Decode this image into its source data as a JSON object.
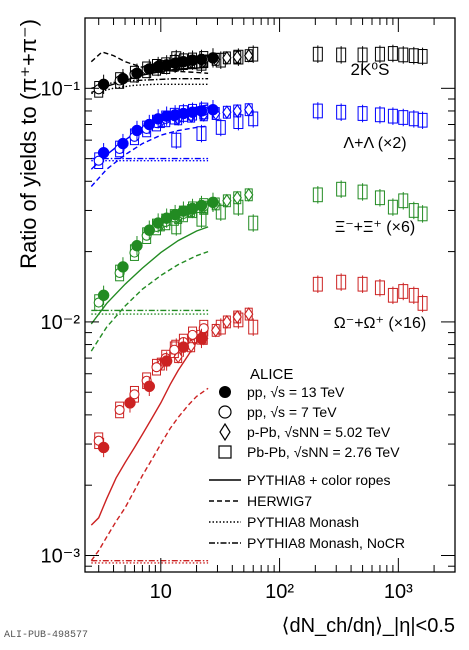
{
  "figure_id": "ALI-PUB-498577",
  "chart_data": {
    "type": "scatter",
    "title": "",
    "xlabel": "⟨dN_ch/dη⟩_|η|<0.5",
    "ylabel": "Ratio of yields to (π⁺+π⁻)",
    "xscale": "log",
    "yscale": "log",
    "xlim": [
      2.3,
      3000
    ],
    "ylim": [
      0.00085,
      0.2
    ],
    "x_ticks": [
      "10",
      "10²",
      "10³"
    ],
    "y_ticks": [
      "10⁻³",
      "10⁻²",
      "10⁻¹"
    ],
    "grid": false,
    "legend_position": "center-right",
    "legend": {
      "title": "ALICE",
      "markers": [
        {
          "key": "pp13",
          "symbol": "filled-circle",
          "label": "pp, √s = 13 TeV"
        },
        {
          "key": "pp7",
          "symbol": "open-circle",
          "label": "pp, √s = 7 TeV"
        },
        {
          "key": "ppb",
          "symbol": "open-diamond",
          "label": "p-Pb, √sNN = 5.02 TeV"
        },
        {
          "key": "pbpb",
          "symbol": "open-square",
          "label": "Pb-Pb, √sNN = 2.76 TeV"
        }
      ],
      "lines": [
        {
          "key": "ropes",
          "dash": "solid",
          "label": "PYTHIA8 + color ropes"
        },
        {
          "key": "herwig",
          "dash": "dashed",
          "label": "HERWIG7"
        },
        {
          "key": "monash",
          "dash": "dotted",
          "label": "PYTHIA8 Monash"
        },
        {
          "key": "nocr",
          "dash": "dashdot",
          "label": "PYTHIA8 Monash, NoCR"
        }
      ]
    },
    "species": [
      {
        "name": "K0S",
        "label": "2K⁰S",
        "color": "#000000",
        "pp13": {
          "x": [
            3.3,
            4.8,
            6.3,
            8.0,
            9.5,
            11.2,
            13.2,
            15.5,
            18.5,
            22.0,
            27.5
          ],
          "y": [
            0.104,
            0.11,
            0.116,
            0.121,
            0.124,
            0.126,
            0.128,
            0.13,
            0.132,
            0.133,
            0.135
          ]
        },
        "pp7": {
          "x": [
            3.0,
            4.5,
            6.0,
            7.6,
            9.2,
            11.0,
            13.0,
            15.5,
            18.5,
            23.0
          ],
          "y": [
            0.099,
            0.108,
            0.115,
            0.12,
            0.123,
            0.125,
            0.128,
            0.13,
            0.131,
            0.133
          ]
        },
        "ppb": {
          "x": [
            10,
            14,
            18,
            23,
            29,
            36,
            44,
            55
          ],
          "y": [
            0.124,
            0.127,
            0.13,
            0.131,
            0.133,
            0.135,
            0.136,
            0.138
          ]
        },
        "pbpb": {
          "x": [
            13.5,
            22,
            32,
            45,
            60,
            210,
            330,
            500,
            700,
            900,
            1100,
            1350,
            1600
          ],
          "y": [
            0.134,
            0.128,
            0.132,
            0.136,
            0.14,
            0.14,
            0.139,
            0.139,
            0.14,
            0.141,
            0.139,
            0.138,
            0.137
          ]
        },
        "ropes": {
          "x": [
            2.6,
            3.5,
            5,
            7,
            10,
            14,
            20,
            25
          ],
          "y": [
            0.096,
            0.102,
            0.108,
            0.114,
            0.118,
            0.121,
            0.122,
            0.123
          ]
        },
        "herwig": {
          "x": [
            2.6,
            3.2,
            4,
            5,
            7,
            10,
            14,
            20,
            25
          ],
          "y": [
            0.13,
            0.143,
            0.138,
            0.13,
            0.123,
            0.12,
            0.118,
            0.117,
            0.116
          ]
        },
        "monash": {
          "x": [
            2.6,
            4,
            6,
            9,
            13,
            19,
            25
          ],
          "y": [
            0.095,
            0.1,
            0.103,
            0.104,
            0.104,
            0.104,
            0.104
          ]
        },
        "nocr": {
          "x": [
            2.6,
            4,
            6,
            9,
            13,
            19,
            25
          ],
          "y": [
            0.1,
            0.106,
            0.108,
            0.109,
            0.11,
            0.11,
            0.11
          ]
        }
      },
      {
        "name": "Lambda",
        "label": "Λ+Λ (×2)",
        "color": "#0000ff",
        "pp13": {
          "x": [
            3.3,
            4.8,
            6.3,
            8.0,
            9.5,
            11.2,
            13.2,
            15.5,
            18.5,
            22.0,
            27.5
          ],
          "y": [
            0.053,
            0.058,
            0.066,
            0.07,
            0.074,
            0.076,
            0.077,
            0.078,
            0.079,
            0.08,
            0.081
          ]
        },
        "pp7": {
          "x": [
            3.0,
            4.5,
            6.0,
            7.6,
            9.2,
            11.0,
            13.0,
            15.5,
            18.5,
            23.0
          ],
          "y": [
            0.049,
            0.055,
            0.062,
            0.067,
            0.071,
            0.074,
            0.076,
            0.078,
            0.079,
            0.08
          ]
        },
        "ppb": {
          "x": [
            10,
            14,
            18,
            23,
            29,
            36,
            44,
            55
          ],
          "y": [
            0.072,
            0.074,
            0.076,
            0.077,
            0.078,
            0.079,
            0.08,
            0.081
          ]
        },
        "pbpb": {
          "x": [
            13.5,
            22,
            32,
            45,
            60,
            210,
            330,
            500,
            700,
            900,
            1100,
            1350,
            1600
          ],
          "y": [
            0.06,
            0.064,
            0.068,
            0.072,
            0.074,
            0.08,
            0.079,
            0.078,
            0.077,
            0.076,
            0.075,
            0.074,
            0.073
          ]
        },
        "ropes": {
          "x": [
            2.6,
            3.5,
            5,
            7,
            10,
            14,
            20,
            25
          ],
          "y": [
            0.045,
            0.052,
            0.06,
            0.068,
            0.074,
            0.079,
            0.083,
            0.085
          ]
        },
        "herwig": {
          "x": [
            2.6,
            3.5,
            5,
            7,
            10,
            14,
            20,
            25
          ],
          "y": [
            0.038,
            0.045,
            0.052,
            0.058,
            0.063,
            0.066,
            0.068,
            0.069
          ]
        },
        "monash": {
          "x": [
            2.6,
            4,
            6,
            9,
            13,
            19,
            25
          ],
          "y": [
            0.049,
            0.049,
            0.049,
            0.049,
            0.049,
            0.049,
            0.049
          ]
        },
        "nocr": {
          "x": [
            2.6,
            4,
            6,
            9,
            13,
            19,
            25
          ],
          "y": [
            0.05,
            0.05,
            0.05,
            0.05,
            0.05,
            0.05,
            0.05
          ]
        }
      },
      {
        "name": "Xi",
        "label": "Ξ⁻+Ξ⁺ (×6)",
        "color": "#228b22",
        "pp13": {
          "x": [
            3.3,
            4.8,
            6.3,
            8.0,
            9.5,
            11.2,
            13.2,
            15.5,
            18.5,
            22.0,
            27.5
          ],
          "y": [
            0.013,
            0.0172,
            0.0212,
            0.0247,
            0.0265,
            0.0278,
            0.0288,
            0.0298,
            0.0306,
            0.0315,
            0.0325
          ]
        },
        "pp7": {
          "x": [
            3.0,
            4.5,
            6.0,
            7.6,
            9.2,
            11.0,
            13.0,
            15.5,
            18.5,
            23.0
          ],
          "y": [
            0.0121,
            0.0162,
            0.0198,
            0.0234,
            0.0255,
            0.0268,
            0.028,
            0.029,
            0.0302,
            0.0312
          ]
        },
        "ppb": {
          "x": [
            10,
            14,
            18,
            23,
            29,
            36,
            44,
            55
          ],
          "y": [
            0.026,
            0.028,
            0.03,
            0.031,
            0.032,
            0.033,
            0.034,
            0.035
          ]
        },
        "pbpb": {
          "x": [
            13.5,
            22,
            32,
            45,
            60,
            210,
            330,
            500,
            700,
            900,
            1100,
            1350,
            1600
          ],
          "y": [
            0.0255,
            0.0275,
            0.0295,
            0.031,
            0.0265,
            0.035,
            0.037,
            0.036,
            0.034,
            0.031,
            0.033,
            0.03,
            0.029
          ]
        },
        "ropes": {
          "x": [
            2.6,
            3.5,
            5,
            7,
            10,
            14,
            20,
            25
          ],
          "y": [
            0.0098,
            0.012,
            0.0145,
            0.017,
            0.0198,
            0.0223,
            0.0245,
            0.0255
          ]
        },
        "herwig": {
          "x": [
            2.6,
            3.5,
            5,
            7,
            10,
            14,
            20,
            25
          ],
          "y": [
            0.0075,
            0.0095,
            0.0117,
            0.0138,
            0.0158,
            0.0176,
            0.0192,
            0.02
          ]
        },
        "monash": {
          "x": [
            2.6,
            4,
            6,
            9,
            13,
            19,
            25
          ],
          "y": [
            0.0108,
            0.0108,
            0.0108,
            0.0108,
            0.0108,
            0.0108,
            0.0108
          ]
        },
        "nocr": {
          "x": [
            2.6,
            4,
            6,
            9,
            13,
            19,
            25
          ],
          "y": [
            0.0112,
            0.0112,
            0.0112,
            0.0112,
            0.0112,
            0.0112,
            0.0112
          ]
        }
      },
      {
        "name": "Omega",
        "label": "Ω⁻+Ω⁺ (×16)",
        "color": "#cc2222",
        "pp13": {
          "x": [
            3.3,
            5.5,
            8.0,
            11.2,
            15.5,
            22.0
          ],
          "y": [
            0.0029,
            0.0045,
            0.0053,
            0.0068,
            0.0078,
            0.0085
          ]
        },
        "pp7": {
          "x": [
            3.0,
            4.5,
            6.0,
            7.6,
            9.2,
            11.0,
            13.0,
            15.5,
            18.5,
            23.0
          ],
          "y": [
            0.0031,
            0.0042,
            0.0049,
            0.0056,
            0.0064,
            0.007,
            0.0076,
            0.0082,
            0.0088,
            0.0094
          ]
        },
        "ppb": {
          "x": [
            10,
            14,
            18,
            23,
            29,
            36,
            44,
            55
          ],
          "y": [
            0.0066,
            0.0071,
            0.0079,
            0.0085,
            0.0092,
            0.01,
            0.0105,
            0.0108
          ]
        },
        "pbpb": {
          "x": [
            13.5,
            22,
            32,
            45,
            60,
            210,
            330,
            500,
            700,
            900,
            1100,
            1350,
            1600
          ],
          "y": [
            0.0078,
            0.0086,
            0.0095,
            0.0102,
            0.0095,
            0.0145,
            0.0148,
            0.0145,
            0.014,
            0.013,
            0.0135,
            0.013,
            0.012
          ]
        },
        "ropes": {
          "x": [
            2.6,
            3,
            3.5,
            4.2,
            5,
            6,
            7,
            8.5,
            10,
            12,
            14,
            17,
            20,
            25
          ],
          "y": [
            0.00135,
            0.00145,
            0.00175,
            0.00215,
            0.0025,
            0.0029,
            0.0033,
            0.0039,
            0.0045,
            0.0054,
            0.0062,
            0.0072,
            0.0082,
            0.0092
          ]
        },
        "herwig": {
          "x": [
            2.6,
            3,
            3.5,
            4.2,
            5,
            6,
            7,
            8.5,
            10,
            12,
            14,
            17,
            20,
            25
          ],
          "y": [
            0.00095,
            0.00105,
            0.0012,
            0.0014,
            0.0016,
            0.0019,
            0.0022,
            0.0026,
            0.003,
            0.0035,
            0.0039,
            0.0044,
            0.0048,
            0.0052
          ]
        },
        "monash": {
          "x": [
            2.6,
            4,
            6,
            9,
            13,
            19,
            25
          ],
          "y": [
            0.00093,
            0.00093,
            0.00093,
            0.00093,
            0.00093,
            0.00093,
            0.00093
          ]
        },
        "nocr": {
          "x": [
            2.6,
            4,
            6,
            9,
            13,
            19,
            25
          ],
          "y": [
            0.00095,
            0.00095,
            0.00095,
            0.00095,
            0.00095,
            0.00095,
            0.00095
          ]
        }
      }
    ]
  }
}
